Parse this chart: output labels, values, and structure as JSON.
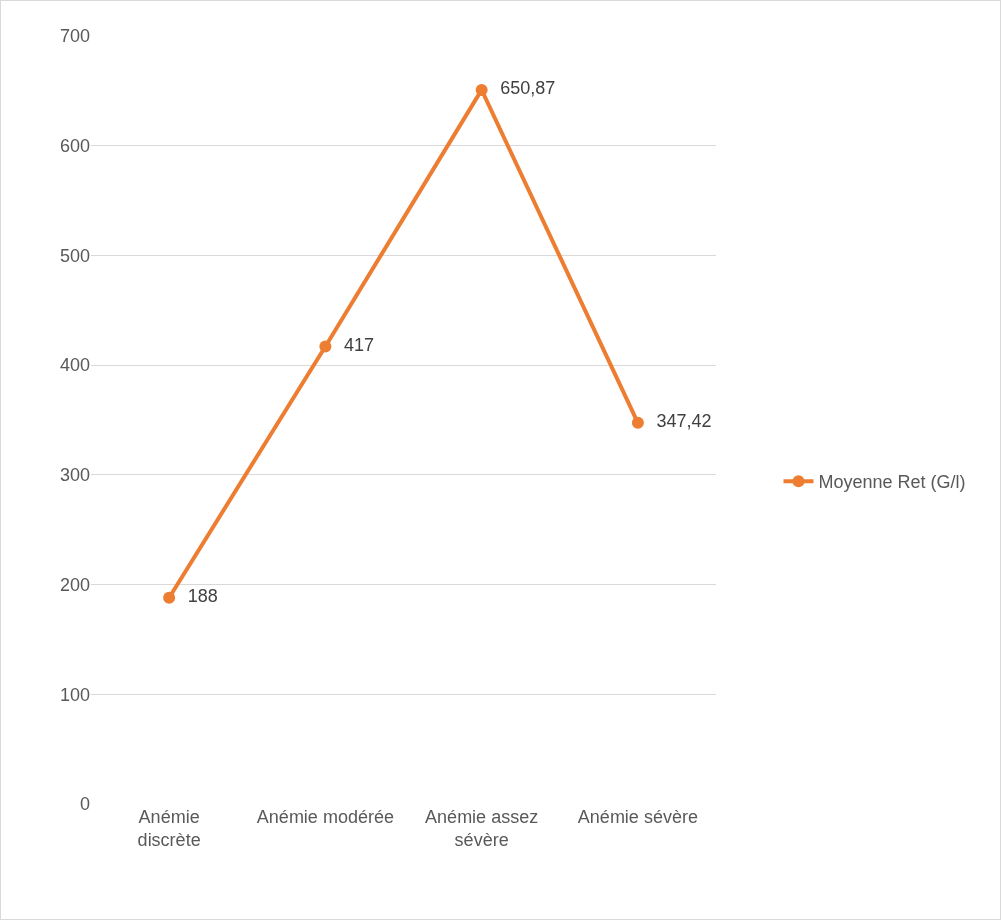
{
  "chart_data": {
    "type": "line",
    "categories": [
      "Anémie discrète",
      "Anémie modérée",
      "Anémie assez sévère",
      "Anémie sévère"
    ],
    "series": [
      {
        "name": "Moyenne Ret (G/l)",
        "color": "#ed7d31",
        "values": [
          188,
          417,
          650.87,
          347.42
        ],
        "value_labels": [
          "188",
          "417",
          "650,87",
          "347,42"
        ]
      }
    ],
    "ylim": [
      0,
      700
    ],
    "yticks": [
      0,
      100,
      200,
      300,
      400,
      500,
      600,
      700
    ],
    "grid": "y",
    "legend": "right",
    "marker": "circle",
    "line_style": "solid"
  }
}
